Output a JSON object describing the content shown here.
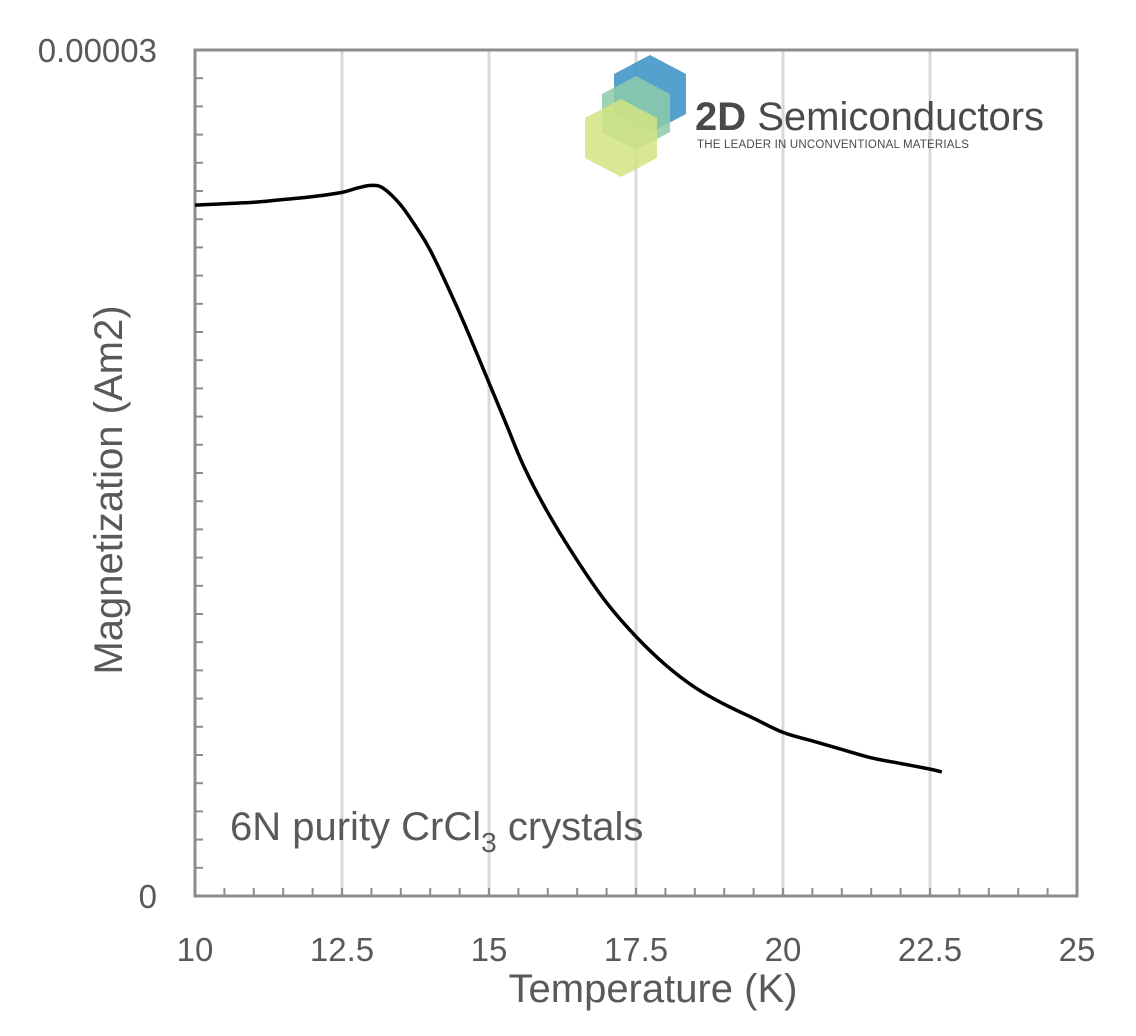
{
  "chart_data": {
    "type": "line",
    "title": "",
    "xlabel": "Temperature (K)",
    "ylabel": "Magnetization (Am2)",
    "xlim": [
      10,
      25
    ],
    "ylim": [
      0,
      3e-05
    ],
    "x_ticks": [
      10,
      12.5,
      15,
      17.5,
      20,
      22.5,
      25
    ],
    "x_tick_labels": [
      "10",
      "12.5",
      "15",
      "17.5",
      "20",
      "22.5",
      "25"
    ],
    "y_ticks": [
      0,
      3e-05
    ],
    "y_tick_labels": [
      "0",
      "0.00003"
    ],
    "grid": "vertical",
    "annotation": {
      "prefix": "6N purity CrCl",
      "subscript": "3",
      "suffix": " crystals"
    },
    "series": [
      {
        "name": "Magnetization",
        "color": "#000000",
        "x": [
          10.0,
          10.5,
          11.0,
          11.5,
          12.0,
          12.5,
          12.75,
          13.0,
          13.2,
          13.5,
          13.8,
          14.0,
          14.3,
          14.6,
          15.0,
          15.3,
          15.6,
          16.0,
          16.5,
          17.0,
          17.5,
          18.0,
          18.5,
          19.0,
          19.5,
          20.0,
          20.5,
          21.0,
          21.5,
          22.0,
          22.5,
          22.7
        ],
        "values": [
          2.45e-05,
          2.455e-05,
          2.46e-05,
          2.47e-05,
          2.48e-05,
          2.495e-05,
          2.51e-05,
          2.52e-05,
          2.51e-05,
          2.45e-05,
          2.36e-05,
          2.29e-05,
          2.16e-05,
          2.02e-05,
          1.82e-05,
          1.67e-05,
          1.52e-05,
          1.36e-05,
          1.19e-05,
          1.04e-05,
          9.2e-06,
          8.2e-06,
          7.4e-06,
          6.8e-06,
          6.3e-06,
          5.8e-06,
          5.5e-06,
          5.2e-06,
          4.9e-06,
          4.7e-06,
          4.5e-06,
          4.4e-06
        ]
      }
    ]
  },
  "logo": {
    "name_bold": "2D",
    "name_rest": " Semiconductors",
    "tagline": "THE LEADER IN UNCONVENTIONAL MATERIALS",
    "hex_colors": [
      "#4a9cc9",
      "#8ccba8",
      "#d4e383"
    ]
  }
}
